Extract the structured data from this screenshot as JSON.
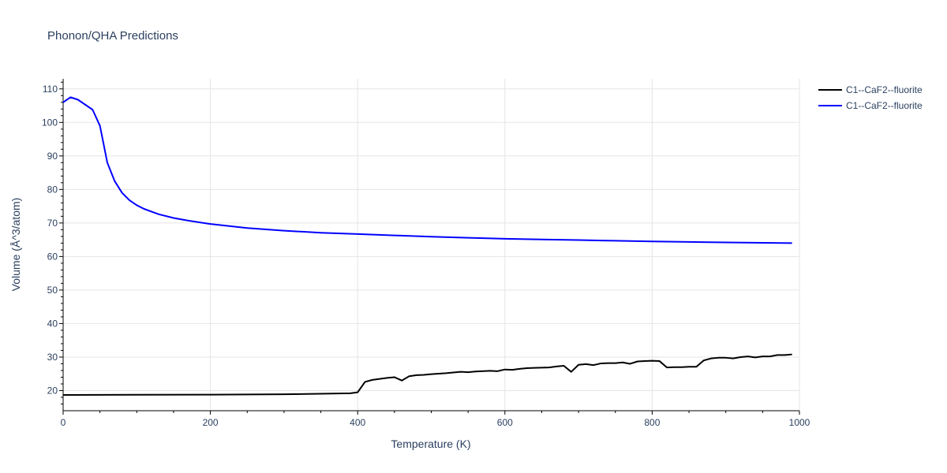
{
  "chart_data": {
    "type": "line",
    "title": "Phonon/QHA Predictions",
    "xlabel": "Temperature (K)",
    "ylabel": "Volume (Å^3/atom)",
    "xlim": [
      0,
      1000
    ],
    "ylim": [
      14,
      113
    ],
    "x_ticks": [
      0,
      200,
      400,
      600,
      800,
      1000
    ],
    "y_ticks": [
      20,
      30,
      40,
      50,
      60,
      70,
      80,
      90,
      100,
      110
    ],
    "grid": true,
    "legend_position": "top-right",
    "series": [
      {
        "name": "C1--CaF2--fluorite",
        "color": "#000000",
        "x": [
          0,
          100,
          200,
          300,
          390,
          400,
          410,
          420,
          430,
          440,
          450,
          460,
          470,
          480,
          490,
          500,
          520,
          540,
          550,
          560,
          580,
          590,
          600,
          610,
          620,
          630,
          640,
          660,
          670,
          680,
          690,
          700,
          710,
          720,
          730,
          740,
          750,
          760,
          770,
          780,
          790,
          800,
          810,
          820,
          830,
          840,
          850,
          860,
          870,
          880,
          890,
          900,
          910,
          920,
          930,
          940,
          950,
          960,
          970,
          980,
          990
        ],
        "y": [
          18.7,
          18.75,
          18.8,
          18.9,
          19.2,
          19.5,
          22.6,
          23.2,
          23.5,
          23.8,
          24.0,
          23.0,
          24.3,
          24.6,
          24.7,
          24.9,
          25.2,
          25.6,
          25.5,
          25.7,
          25.9,
          25.8,
          26.3,
          26.2,
          26.5,
          26.7,
          26.8,
          26.9,
          27.2,
          27.4,
          25.6,
          27.7,
          27.9,
          27.6,
          28.1,
          28.2,
          28.2,
          28.4,
          28.0,
          28.7,
          28.8,
          28.9,
          28.8,
          26.9,
          27.0,
          27.0,
          27.1,
          27.1,
          29.0,
          29.6,
          29.8,
          29.8,
          29.6,
          30.0,
          30.2,
          29.9,
          30.2,
          30.2,
          30.6,
          30.6,
          30.8
        ]
      },
      {
        "name": "C1--CaF2--fluorite",
        "color": "#0000ff",
        "x": [
          0,
          10,
          20,
          30,
          40,
          50,
          60,
          70,
          80,
          90,
          100,
          110,
          120,
          130,
          150,
          170,
          200,
          250,
          300,
          350,
          400,
          450,
          500,
          550,
          600,
          650,
          700,
          750,
          800,
          850,
          900,
          950,
          990
        ],
        "y": [
          106.0,
          107.5,
          106.8,
          105.3,
          103.8,
          99.0,
          88.0,
          82.5,
          79.0,
          76.8,
          75.3,
          74.2,
          73.4,
          72.6,
          71.5,
          70.7,
          69.7,
          68.5,
          67.7,
          67.1,
          66.7,
          66.3,
          65.9,
          65.6,
          65.3,
          65.1,
          64.9,
          64.7,
          64.5,
          64.35,
          64.2,
          64.1,
          64.0
        ]
      }
    ]
  }
}
